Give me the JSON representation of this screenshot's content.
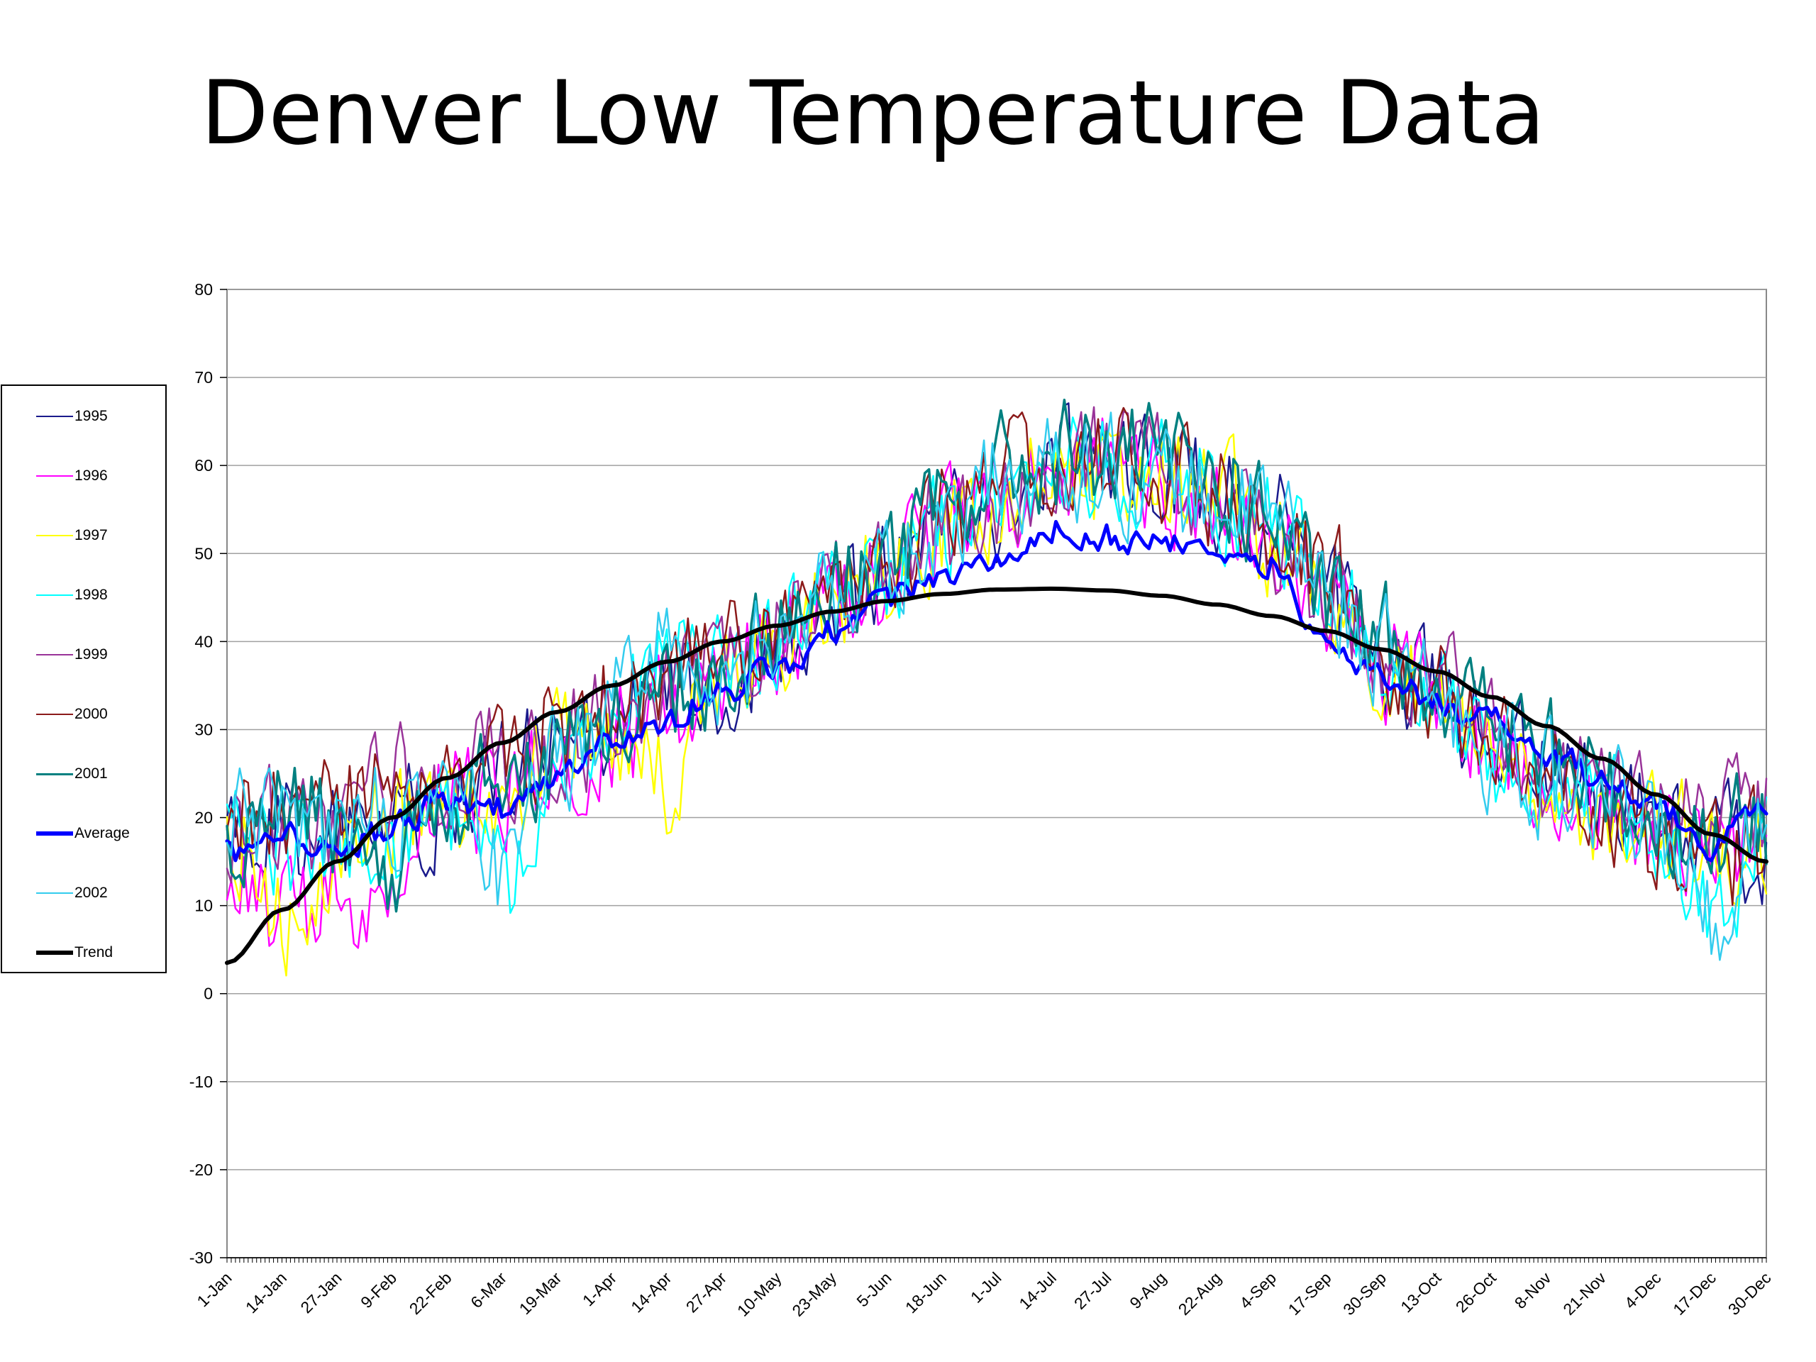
{
  "title": "Denver Low Temperature Data",
  "chart_data": {
    "type": "line",
    "title": "Denver Low Temperature Data",
    "xlabel": "",
    "ylabel": "",
    "ylim": [
      -30,
      80
    ],
    "y_ticks": [
      "80",
      "70",
      "60",
      "50",
      "40",
      "30",
      "20",
      "10",
      "0",
      "-10",
      "-20",
      "-30"
    ],
    "x_tick_labels": [
      "1-Jan",
      "14-Jan",
      "27-Jan",
      "9-Feb",
      "22-Feb",
      "6-Mar",
      "19-Mar",
      "1-Apr",
      "14-Apr",
      "27-Apr",
      "10-May",
      "23-May",
      "5-Jun",
      "18-Jun",
      "1-Jul",
      "14-Jul",
      "27-Jul",
      "9-Aug",
      "22-Aug",
      "4-Sep",
      "17-Sep",
      "30-Sep",
      "13-Oct",
      "26-Oct",
      "8-Nov",
      "21-Nov",
      "4-Dec",
      "17-Dec",
      "30-Dec"
    ],
    "grid": true,
    "legend_position": "left",
    "series": [
      {
        "name": "1995",
        "color": "#1a1a8c",
        "anchors_x": [
          "1-Jan",
          "14-Jan",
          "27-Jan",
          "9-Feb",
          "22-Feb",
          "6-Mar",
          "19-Mar",
          "1-Apr",
          "14-Apr",
          "27-Apr",
          "10-May",
          "23-May",
          "5-Jun",
          "18-Jun",
          "1-Jul",
          "14-Jul",
          "27-Jul",
          "9-Aug",
          "22-Aug",
          "4-Sep",
          "17-Sep",
          "30-Sep",
          "13-Oct",
          "26-Oct",
          "8-Nov",
          "21-Nov",
          "4-Dec",
          "17-Dec",
          "30-Dec"
        ],
        "anchors_y": [
          15,
          18,
          17,
          20,
          22,
          24,
          28,
          30,
          33,
          36,
          40,
          44,
          48,
          52,
          56,
          59,
          60,
          59,
          57,
          53,
          44,
          38,
          34,
          30,
          26,
          22,
          20,
          17,
          16
        ]
      },
      {
        "name": "1996",
        "color": "#ff00ff",
        "anchors_x": [
          "1-Jan",
          "14-Jan",
          "27-Jan",
          "9-Feb",
          "22-Feb",
          "6-Mar",
          "19-Mar",
          "1-Apr",
          "14-Apr",
          "27-Apr",
          "10-May",
          "23-May",
          "5-Jun",
          "18-Jun",
          "1-Jul",
          "14-Jul",
          "27-Jul",
          "9-Aug",
          "22-Aug",
          "4-Sep",
          "17-Sep",
          "30-Sep",
          "13-Oct",
          "26-Oct",
          "8-Nov",
          "21-Nov",
          "4-Dec",
          "17-Dec",
          "30-Dec"
        ],
        "anchors_y": [
          14,
          10,
          12,
          6,
          22,
          22,
          25,
          28,
          32,
          35,
          40,
          45,
          48,
          52,
          57,
          59,
          60,
          58,
          56,
          52,
          44,
          37,
          33,
          28,
          24,
          20,
          19,
          16,
          18
        ]
      },
      {
        "name": "1997",
        "color": "#ffff00",
        "anchors_x": [
          "1-Jan",
          "14-Jan",
          "27-Jan",
          "9-Feb",
          "22-Feb",
          "6-Mar",
          "19-Mar",
          "1-Apr",
          "14-Apr",
          "27-Apr",
          "10-May",
          "23-May",
          "5-Jun",
          "18-Jun",
          "1-Jul",
          "14-Jul",
          "27-Jul",
          "9-Aug",
          "22-Aug",
          "4-Sep",
          "17-Sep",
          "30-Sep",
          "13-Oct",
          "26-Oct",
          "8-Nov",
          "21-Nov",
          "4-Dec",
          "17-Dec",
          "30-Dec"
        ],
        "anchors_y": [
          20,
          8,
          15,
          20,
          21,
          23,
          27,
          28,
          24,
          35,
          40,
          45,
          48,
          52,
          56,
          58,
          59,
          58,
          56,
          52,
          46,
          38,
          34,
          26,
          23,
          21,
          19,
          17,
          17
        ]
      },
      {
        "name": "1998",
        "color": "#00ffff",
        "anchors_x": [
          "1-Jan",
          "14-Jan",
          "27-Jan",
          "9-Feb",
          "22-Feb",
          "6-Mar",
          "19-Mar",
          "1-Apr",
          "14-Apr",
          "27-Apr",
          "10-May",
          "23-May",
          "5-Jun",
          "18-Jun",
          "1-Jul",
          "14-Jul",
          "27-Jul",
          "9-Aug",
          "22-Aug",
          "4-Sep",
          "17-Sep",
          "30-Sep",
          "13-Oct",
          "26-Oct",
          "8-Nov",
          "21-Nov",
          "4-Dec",
          "17-Dec",
          "30-Dec"
        ],
        "anchors_y": [
          18,
          17,
          18,
          18,
          20,
          13,
          26,
          32,
          38,
          36,
          40,
          44,
          48,
          53,
          57,
          59,
          60,
          59,
          57,
          53,
          46,
          38,
          33,
          26,
          24,
          21,
          19,
          8,
          18
        ]
      },
      {
        "name": "1999",
        "color": "#993399",
        "anchors_x": [
          "1-Jan",
          "14-Jan",
          "27-Jan",
          "9-Feb",
          "22-Feb",
          "6-Mar",
          "19-Mar",
          "1-Apr",
          "14-Apr",
          "27-Apr",
          "10-May",
          "23-May",
          "5-Jun",
          "18-Jun",
          "1-Jul",
          "14-Jul",
          "27-Jul",
          "9-Aug",
          "22-Aug",
          "4-Sep",
          "17-Sep",
          "30-Sep",
          "13-Oct",
          "26-Oct",
          "8-Nov",
          "21-Nov",
          "4-Dec",
          "17-Dec",
          "30-Dec"
        ],
        "anchors_y": [
          19,
          19,
          20,
          24,
          24,
          26,
          28,
          31,
          34,
          36,
          41,
          45,
          49,
          53,
          57,
          60,
          61,
          59,
          57,
          52,
          45,
          38,
          34,
          29,
          25,
          22,
          21,
          19,
          20
        ]
      },
      {
        "name": "2000",
        "color": "#8b1a1a",
        "anchors_x": [
          "1-Jan",
          "14-Jan",
          "27-Jan",
          "9-Feb",
          "22-Feb",
          "6-Mar",
          "19-Mar",
          "1-Apr",
          "14-Apr",
          "27-Apr",
          "10-May",
          "23-May",
          "5-Jun",
          "18-Jun",
          "1-Jul",
          "14-Jul",
          "27-Jul",
          "9-Aug",
          "22-Aug",
          "4-Sep",
          "17-Sep",
          "30-Sep",
          "13-Oct",
          "26-Oct",
          "8-Nov",
          "21-Nov",
          "4-Dec",
          "17-Dec",
          "30-Dec"
        ],
        "anchors_y": [
          20,
          22,
          21,
          23,
          24,
          27,
          30,
          33,
          36,
          38,
          42,
          47,
          50,
          54,
          58,
          60,
          60,
          59,
          57,
          53,
          47,
          38,
          34,
          30,
          24,
          20,
          17,
          14,
          16
        ]
      },
      {
        "name": "2001",
        "color": "#008080",
        "anchors_x": [
          "1-Jan",
          "14-Jan",
          "27-Jan",
          "9-Feb",
          "22-Feb",
          "6-Mar",
          "19-Mar",
          "1-Apr",
          "14-Apr",
          "27-Apr",
          "10-May",
          "23-May",
          "5-Jun",
          "18-Jun",
          "1-Jul",
          "14-Jul",
          "27-Jul",
          "9-Aug",
          "22-Aug",
          "4-Sep",
          "17-Sep",
          "30-Sep",
          "13-Oct",
          "26-Oct",
          "8-Nov",
          "21-Nov",
          "4-Dec",
          "17-Dec",
          "30-Dec"
        ],
        "anchors_y": [
          17,
          20,
          19,
          14,
          22,
          24,
          28,
          31,
          35,
          37,
          42,
          46,
          50,
          54,
          59,
          61,
          61,
          60,
          58,
          54,
          44,
          40,
          36,
          31,
          27,
          24,
          20,
          18,
          18
        ]
      },
      {
        "name": "Average",
        "color": "#0000ff",
        "anchors_x": [
          "1-Jan",
          "14-Jan",
          "27-Jan",
          "9-Feb",
          "22-Feb",
          "6-Mar",
          "19-Mar",
          "1-Apr",
          "14-Apr",
          "27-Apr",
          "10-May",
          "23-May",
          "5-Jun",
          "18-Jun",
          "1-Jul",
          "14-Jul",
          "27-Jul",
          "9-Aug",
          "22-Aug",
          "4-Sep",
          "17-Sep",
          "30-Sep",
          "13-Oct",
          "26-Oct",
          "8-Nov",
          "21-Nov",
          "4-Dec",
          "17-Dec",
          "30-Dec"
        ],
        "anchors_y": [
          16,
          18,
          16,
          19,
          22,
          21,
          25,
          28,
          31,
          34,
          37,
          41,
          45,
          47,
          49,
          53,
          52,
          51,
          50,
          49,
          40,
          36,
          33,
          31,
          27,
          25,
          21,
          17,
          22
        ]
      },
      {
        "name": "2002",
        "color": "#33ccee",
        "anchors_x": [
          "1-Jan",
          "14-Jan",
          "27-Jan",
          "9-Feb",
          "22-Feb",
          "6-Mar",
          "19-Mar",
          "1-Apr",
          "14-Apr",
          "27-Apr",
          "10-May",
          "23-May",
          "5-Jun",
          "18-Jun",
          "1-Jul",
          "14-Jul",
          "27-Jul",
          "9-Aug",
          "22-Aug",
          "4-Sep",
          "17-Sep",
          "30-Sep",
          "13-Oct",
          "26-Oct",
          "8-Nov",
          "21-Nov",
          "4-Dec",
          "17-Dec",
          "30-Dec"
        ],
        "anchors_y": [
          20,
          19,
          18,
          20,
          22,
          13,
          26,
          32,
          40,
          37,
          41,
          44,
          48,
          54,
          58,
          60,
          60,
          58,
          56,
          54,
          46,
          38,
          33,
          28,
          24,
          21,
          19,
          9,
          21
        ]
      },
      {
        "name": "Trend",
        "color": "#000000",
        "anchors_x": [
          "1-Jan",
          "14-Jan",
          "27-Jan",
          "9-Feb",
          "22-Feb",
          "6-Mar",
          "19-Mar",
          "1-Apr",
          "14-Apr",
          "27-Apr",
          "10-May",
          "23-May",
          "5-Jun",
          "18-Jun",
          "1-Jul",
          "14-Jul",
          "27-Jul",
          "9-Aug",
          "22-Aug",
          "4-Sep",
          "17-Sep",
          "30-Sep",
          "13-Oct",
          "26-Oct",
          "8-Nov",
          "21-Nov",
          "4-Dec",
          "17-Dec",
          "30-Dec"
        ],
        "anchors_y": [
          3.5,
          9.5,
          15,
          20,
          24.5,
          28.5,
          32,
          35,
          37.7,
          40,
          41.8,
          43.4,
          44.6,
          45.4,
          45.9,
          46.0,
          45.8,
          45.2,
          44.2,
          42.9,
          41.2,
          39.1,
          36.6,
          33.7,
          30.4,
          26.7,
          22.6,
          18.1,
          15
        ]
      }
    ]
  },
  "legend": {
    "items": [
      {
        "label": "1995",
        "color": "#1a1a8c",
        "width": 2
      },
      {
        "label": "1996",
        "color": "#ff00ff",
        "width": 2
      },
      {
        "label": "1997",
        "color": "#ffff00",
        "width": 2
      },
      {
        "label": "1998",
        "color": "#00ffff",
        "width": 2
      },
      {
        "label": "1999",
        "color": "#993399",
        "width": 2
      },
      {
        "label": "2000",
        "color": "#8b1a1a",
        "width": 2
      },
      {
        "label": "2001",
        "color": "#008080",
        "width": 3
      },
      {
        "label": "Average",
        "color": "#0000ff",
        "width": 6
      },
      {
        "label": "2002",
        "color": "#33ccee",
        "width": 2
      },
      {
        "label": "Trend",
        "color": "#000000",
        "width": 6
      }
    ]
  }
}
